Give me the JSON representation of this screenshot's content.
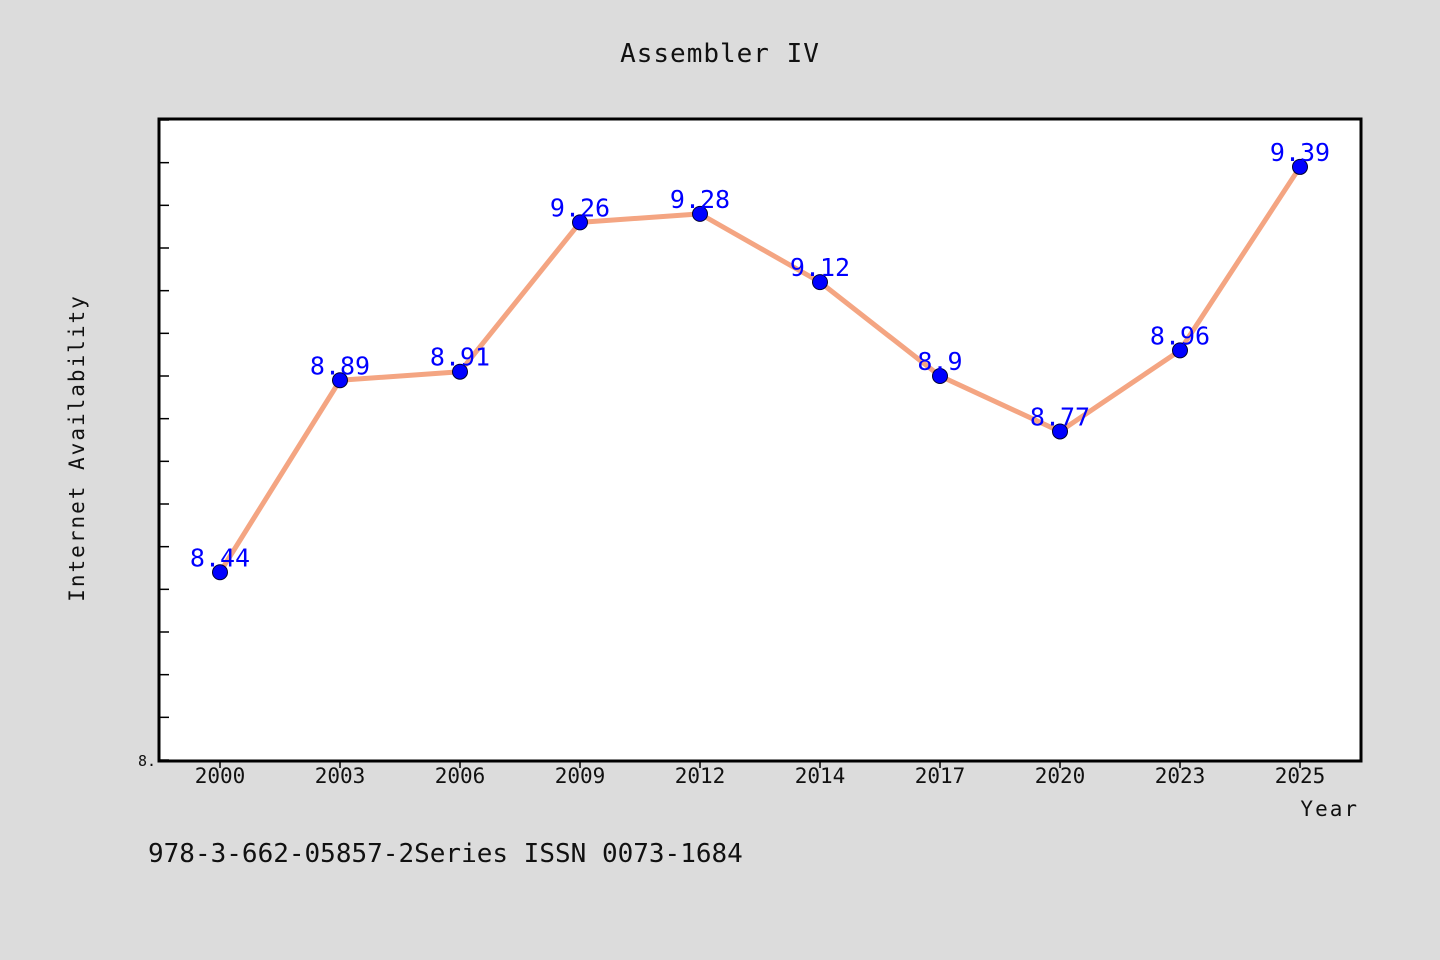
{
  "chart_data": {
    "type": "line",
    "title": "Assembler IV",
    "xlabel": "Year",
    "ylabel": "Internet Availability",
    "categories": [
      "2000",
      "2003",
      "2006",
      "2009",
      "2012",
      "2014",
      "2017",
      "2020",
      "2023",
      "2025"
    ],
    "series": [
      {
        "values": [
          8.44,
          8.89,
          8.91,
          9.26,
          9.28,
          9.12,
          8.9,
          8.77,
          8.96,
          9.39
        ],
        "line_color": "#f4a582",
        "marker_color": "#0000ff"
      }
    ],
    "data_labels": [
      "8.44",
      "8.89",
      "8.91",
      "9.26",
      "9.28",
      "9.12",
      "8.9",
      "8.77",
      "8.96",
      "9.39"
    ],
    "ylim": [
      8.0,
      9.5
    ],
    "y_tick_count": 15,
    "y_tick_labels": [
      "8."
    ],
    "grid": false,
    "label_color": "#0000ff"
  },
  "footer": {
    "note": "978-3-662-05857-2Series ISSN 0073-1684"
  }
}
